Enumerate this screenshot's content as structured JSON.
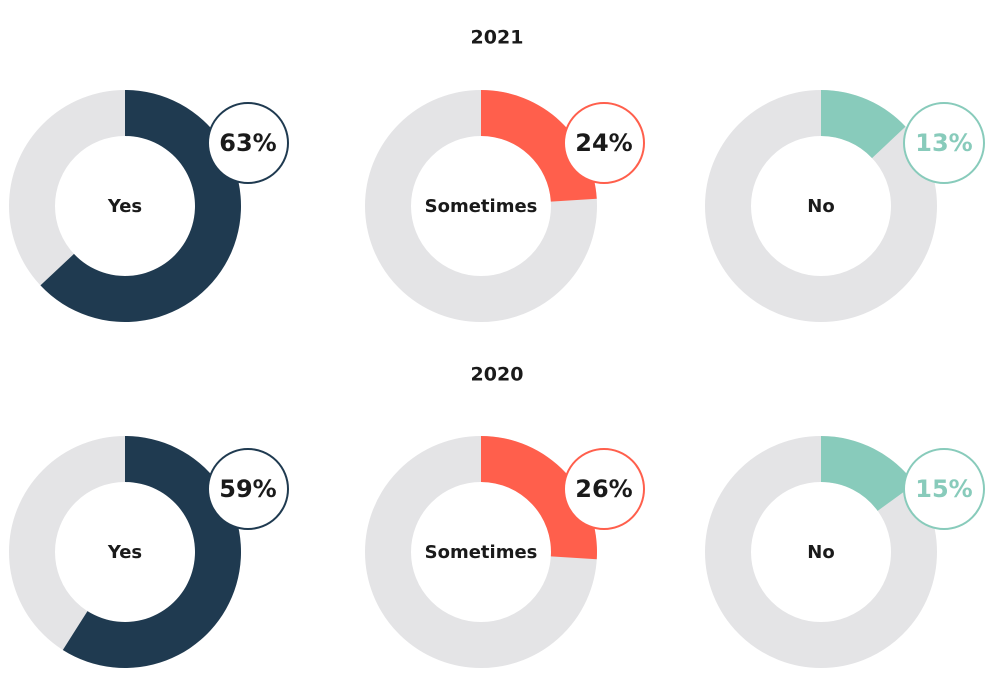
{
  "chart_data": [
    {
      "type": "donut",
      "title": "2021",
      "categories": [
        "Yes",
        "Sometimes",
        "No"
      ],
      "values": [
        63,
        24,
        13
      ],
      "value_labels": [
        "63%",
        "24%",
        "13%"
      ],
      "colors": [
        "#1f3a50",
        "#ff5f4c",
        "#88cbbb"
      ],
      "ylim": [
        0,
        100
      ]
    },
    {
      "type": "donut",
      "title": "2020",
      "categories": [
        "Yes",
        "Sometimes",
        "No"
      ],
      "values": [
        59,
        26,
        15
      ],
      "value_labels": [
        "59%",
        "26%",
        "15%"
      ],
      "colors": [
        "#1f3a50",
        "#ff5f4c",
        "#88cbbb"
      ],
      "ylim": [
        0,
        100
      ]
    }
  ]
}
